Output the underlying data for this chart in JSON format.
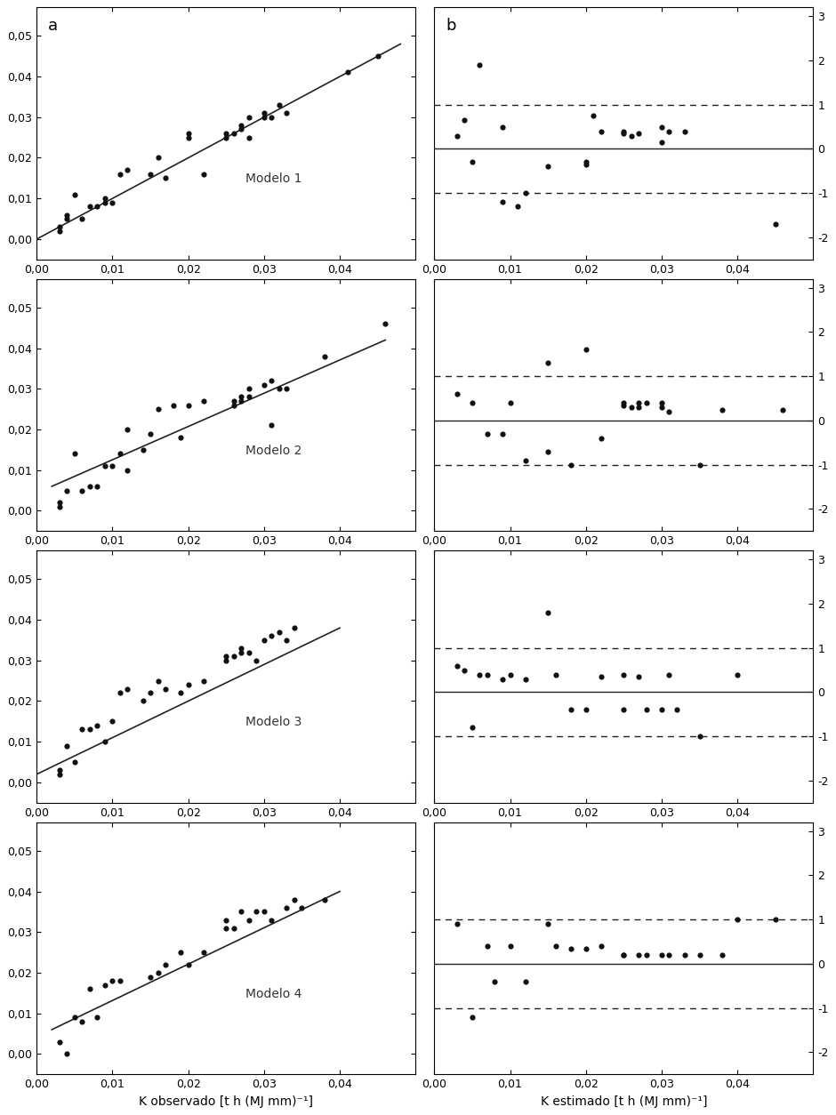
{
  "models": [
    "Modelo 1",
    "Modelo 2",
    "Modelo 3",
    "Modelo 4"
  ],
  "scatter_left": {
    "model1": {
      "x": [
        0.003,
        0.003,
        0.004,
        0.004,
        0.005,
        0.006,
        0.007,
        0.008,
        0.009,
        0.009,
        0.01,
        0.011,
        0.012,
        0.015,
        0.016,
        0.017,
        0.02,
        0.02,
        0.022,
        0.025,
        0.025,
        0.026,
        0.027,
        0.027,
        0.028,
        0.028,
        0.03,
        0.03,
        0.031,
        0.032,
        0.033,
        0.041,
        0.045
      ],
      "y": [
        0.003,
        0.002,
        0.005,
        0.006,
        0.011,
        0.005,
        0.008,
        0.008,
        0.009,
        0.01,
        0.009,
        0.016,
        0.017,
        0.016,
        0.02,
        0.015,
        0.025,
        0.026,
        0.016,
        0.025,
        0.026,
        0.026,
        0.027,
        0.028,
        0.03,
        0.025,
        0.031,
        0.03,
        0.03,
        0.033,
        0.031,
        0.041,
        0.045
      ],
      "line_x": [
        0.0,
        0.048
      ],
      "line_y": [
        0.0,
        0.048
      ]
    },
    "model2": {
      "x": [
        0.003,
        0.003,
        0.004,
        0.005,
        0.006,
        0.007,
        0.008,
        0.009,
        0.01,
        0.011,
        0.012,
        0.012,
        0.014,
        0.015,
        0.016,
        0.018,
        0.019,
        0.02,
        0.022,
        0.026,
        0.026,
        0.027,
        0.027,
        0.028,
        0.028,
        0.03,
        0.031,
        0.031,
        0.032,
        0.033,
        0.038,
        0.046
      ],
      "y": [
        0.001,
        0.002,
        0.005,
        0.014,
        0.005,
        0.006,
        0.006,
        0.011,
        0.011,
        0.014,
        0.02,
        0.01,
        0.015,
        0.019,
        0.025,
        0.026,
        0.018,
        0.026,
        0.027,
        0.026,
        0.027,
        0.028,
        0.027,
        0.03,
        0.028,
        0.031,
        0.032,
        0.021,
        0.03,
        0.03,
        0.038,
        0.046
      ],
      "line_x": [
        0.002,
        0.046
      ],
      "line_y": [
        0.006,
        0.042
      ]
    },
    "model3": {
      "x": [
        0.003,
        0.003,
        0.004,
        0.005,
        0.006,
        0.007,
        0.008,
        0.009,
        0.01,
        0.011,
        0.012,
        0.014,
        0.015,
        0.016,
        0.017,
        0.019,
        0.02,
        0.022,
        0.025,
        0.025,
        0.026,
        0.027,
        0.027,
        0.028,
        0.029,
        0.03,
        0.031,
        0.032,
        0.033,
        0.034
      ],
      "y": [
        0.002,
        0.003,
        0.009,
        0.005,
        0.013,
        0.013,
        0.014,
        0.01,
        0.015,
        0.022,
        0.023,
        0.02,
        0.022,
        0.025,
        0.023,
        0.022,
        0.024,
        0.025,
        0.03,
        0.031,
        0.031,
        0.032,
        0.033,
        0.032,
        0.03,
        0.035,
        0.036,
        0.037,
        0.035,
        0.038
      ],
      "line_x": [
        0.0,
        0.04
      ],
      "line_y": [
        0.002,
        0.038
      ]
    },
    "model4": {
      "x": [
        0.003,
        0.004,
        0.005,
        0.006,
        0.007,
        0.008,
        0.009,
        0.01,
        0.011,
        0.015,
        0.016,
        0.017,
        0.019,
        0.02,
        0.022,
        0.025,
        0.025,
        0.026,
        0.027,
        0.028,
        0.029,
        0.03,
        0.031,
        0.033,
        0.034,
        0.035,
        0.038
      ],
      "y": [
        0.003,
        0.0,
        0.009,
        0.008,
        0.016,
        0.009,
        0.017,
        0.018,
        0.018,
        0.019,
        0.02,
        0.022,
        0.025,
        0.022,
        0.025,
        0.031,
        0.033,
        0.031,
        0.035,
        0.033,
        0.035,
        0.035,
        0.033,
        0.036,
        0.038,
        0.036,
        0.038
      ],
      "line_x": [
        0.002,
        0.04
      ],
      "line_y": [
        0.006,
        0.04
      ]
    }
  },
  "scatter_right": {
    "model1": {
      "x": [
        0.003,
        0.004,
        0.005,
        0.006,
        0.009,
        0.009,
        0.011,
        0.012,
        0.015,
        0.02,
        0.02,
        0.021,
        0.022,
        0.025,
        0.025,
        0.026,
        0.027,
        0.03,
        0.03,
        0.031,
        0.033,
        0.045
      ],
      "y": [
        0.3,
        0.65,
        -0.3,
        1.9,
        0.5,
        -1.2,
        -1.3,
        -1.0,
        -0.4,
        -0.35,
        -0.3,
        0.75,
        0.4,
        0.35,
        0.4,
        0.3,
        0.35,
        0.15,
        0.5,
        0.4,
        0.4,
        -1.7
      ]
    },
    "model2": {
      "x": [
        0.003,
        0.005,
        0.007,
        0.009,
        0.01,
        0.012,
        0.015,
        0.015,
        0.018,
        0.02,
        0.022,
        0.025,
        0.025,
        0.026,
        0.027,
        0.027,
        0.028,
        0.03,
        0.03,
        0.031,
        0.035,
        0.038,
        0.046
      ],
      "y": [
        0.6,
        0.4,
        -0.3,
        -0.3,
        0.4,
        -0.9,
        1.3,
        -0.7,
        -1.0,
        1.6,
        -0.4,
        0.35,
        0.4,
        0.3,
        0.4,
        0.3,
        0.4,
        0.3,
        0.4,
        0.2,
        -1.0,
        0.25,
        0.25
      ]
    },
    "model3": {
      "x": [
        0.003,
        0.004,
        0.005,
        0.006,
        0.007,
        0.009,
        0.01,
        0.012,
        0.015,
        0.016,
        0.018,
        0.02,
        0.022,
        0.025,
        0.025,
        0.027,
        0.028,
        0.03,
        0.031,
        0.032,
        0.035,
        0.04
      ],
      "y": [
        0.6,
        0.5,
        -0.8,
        0.4,
        0.4,
        0.3,
        0.4,
        0.3,
        1.8,
        0.4,
        -0.4,
        -0.4,
        0.35,
        0.4,
        -0.4,
        0.35,
        -0.4,
        -0.4,
        0.4,
        -0.4,
        -1.0,
        0.4
      ]
    },
    "model4": {
      "x": [
        0.003,
        0.005,
        0.007,
        0.008,
        0.01,
        0.012,
        0.015,
        0.016,
        0.018,
        0.02,
        0.022,
        0.025,
        0.025,
        0.027,
        0.028,
        0.03,
        0.031,
        0.033,
        0.035,
        0.038,
        0.04,
        0.045
      ],
      "y": [
        0.9,
        -1.2,
        0.4,
        -0.4,
        0.4,
        -0.4,
        0.9,
        0.4,
        0.35,
        0.35,
        0.4,
        0.2,
        0.2,
        0.2,
        0.2,
        0.2,
        0.2,
        0.2,
        0.2,
        0.2,
        1.0,
        1.0
      ]
    }
  },
  "xlim_left": [
    0.0,
    0.05
  ],
  "ylim_left": [
    -0.005,
    0.057
  ],
  "xlim_right": [
    0.0,
    0.05
  ],
  "ylim_right": [
    -2.5,
    3.2
  ],
  "xlabel_left": "K observado [t h (MJ mm)⁻¹]",
  "xlabel_right": "K estimado [t h (MJ mm)⁻¹]",
  "yticks_left": [
    0.0,
    0.01,
    0.02,
    0.03,
    0.04,
    0.05
  ],
  "xticks_left": [
    0.0,
    0.01,
    0.02,
    0.03,
    0.04
  ],
  "xticks_right": [
    0.0,
    0.01,
    0.02,
    0.03,
    0.04
  ],
  "yticks_right": [
    -2,
    -1,
    0,
    1,
    2,
    3
  ],
  "background_color": "#ffffff",
  "dot_color": "#111111",
  "line_color": "#222222"
}
